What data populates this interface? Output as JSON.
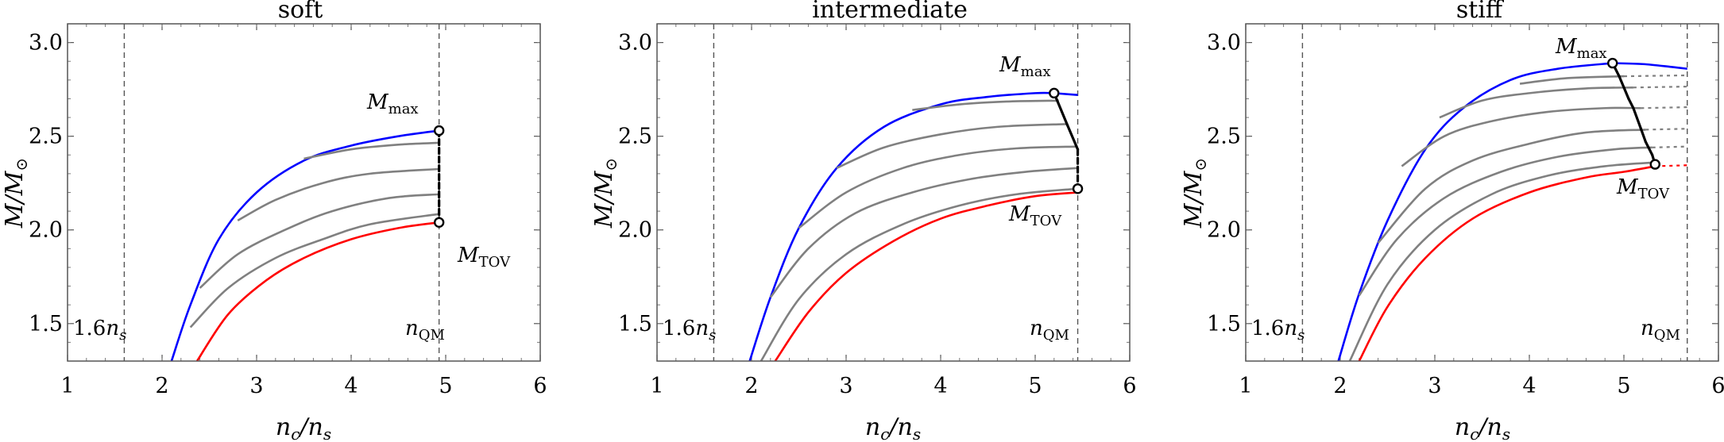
{
  "chart_data": [
    {
      "type": "line",
      "title": "soft",
      "xlabel": "n_c/n_s",
      "ylabel": "M/M_⊙",
      "xlim": [
        1,
        6
      ],
      "ylim": [
        1.3,
        3.1
      ],
      "xticks": [
        "1",
        "2",
        "3",
        "4",
        "5",
        "6"
      ],
      "yticks": [
        "1.5",
        "2.0",
        "2.5",
        "3.0"
      ],
      "vlines": [
        1.6,
        4.93
      ],
      "labels": {
        "lower": "1.6",
        "lower_sub": "s",
        "nqm": "n",
        "nqm_sub": "QM",
        "mmax": "M",
        "mmax_sub": "max",
        "mtov": "M",
        "mtov_sub": "TOV"
      },
      "series": [
        {
          "name": "upper bound",
          "color": "#0000ff",
          "x": [
            2.1,
            2.3,
            2.6,
            3.0,
            3.5,
            4.0,
            4.5,
            4.93
          ],
          "y": [
            1.3,
            1.6,
            1.95,
            2.2,
            2.37,
            2.45,
            2.5,
            2.53
          ]
        },
        {
          "name": "intermediate 1",
          "color": "#808080",
          "x": [
            3.5,
            4.0,
            4.5,
            4.93
          ],
          "y": [
            2.38,
            2.43,
            2.455,
            2.465
          ]
        },
        {
          "name": "intermediate 2",
          "color": "#808080",
          "x": [
            2.8,
            3.2,
            3.7,
            4.2,
            4.93
          ],
          "y": [
            2.05,
            2.16,
            2.25,
            2.3,
            2.325
          ]
        },
        {
          "name": "intermediate 3",
          "color": "#808080",
          "x": [
            2.4,
            2.8,
            3.3,
            3.8,
            4.4,
            4.93
          ],
          "y": [
            1.69,
            1.87,
            2.0,
            2.1,
            2.17,
            2.19
          ]
        },
        {
          "name": "intermediate 4",
          "color": "#808080",
          "x": [
            2.3,
            2.7,
            3.2,
            3.7,
            4.2,
            4.93
          ],
          "y": [
            1.48,
            1.69,
            1.85,
            1.95,
            2.03,
            2.085
          ]
        },
        {
          "name": "lower bound",
          "color": "#ff0000",
          "x": [
            2.37,
            2.7,
            3.1,
            3.5,
            4.0,
            4.5,
            4.93
          ],
          "y": [
            1.3,
            1.55,
            1.73,
            1.85,
            1.95,
            2.01,
            2.04
          ]
        }
      ],
      "markers": {
        "mmax": {
          "x": 4.93,
          "y": 2.53
        },
        "mtov": {
          "x": 4.93,
          "y": 2.04
        }
      },
      "black_curve": {
        "x": [
          4.93,
          4.93
        ],
        "y": [
          2.53,
          2.04
        ],
        "dashed": [
          true
        ]
      },
      "dotted_extensions": []
    },
    {
      "type": "line",
      "title": "intermediate",
      "xlabel": "n_c/n_s",
      "ylabel": "M/M_⊙",
      "xlim": [
        1,
        6
      ],
      "ylim": [
        1.3,
        3.1
      ],
      "xticks": [
        "1",
        "2",
        "3",
        "4",
        "5",
        "6"
      ],
      "yticks": [
        "1.5",
        "2.0",
        "2.5",
        "3.0"
      ],
      "vlines": [
        1.6,
        5.45
      ],
      "labels": {
        "lower": "1.6",
        "lower_sub": "s",
        "nqm": "n",
        "nqm_sub": "QM",
        "mmax": "M",
        "mmax_sub": "max",
        "mtov": "M",
        "mtov_sub": "TOV"
      },
      "series": [
        {
          "name": "upper bound",
          "color": "#0000ff",
          "x": [
            1.98,
            2.2,
            2.5,
            2.9,
            3.4,
            4.0,
            4.5,
            5.0,
            5.2
          ],
          "y": [
            1.3,
            1.64,
            2.01,
            2.33,
            2.55,
            2.67,
            2.71,
            2.73,
            2.73
          ]
        },
        {
          "name": "blue tail",
          "color": "#0000ff",
          "x": [
            5.2,
            5.45
          ],
          "y": [
            2.73,
            2.72
          ]
        },
        {
          "name": "intermediate 1",
          "color": "#808080",
          "x": [
            3.7,
            4.2,
            4.7,
            5.25
          ],
          "y": [
            2.64,
            2.67,
            2.685,
            2.69
          ]
        },
        {
          "name": "intermediate 2",
          "color": "#808080",
          "x": [
            2.9,
            3.4,
            4.0,
            4.6,
            5.34
          ],
          "y": [
            2.33,
            2.44,
            2.51,
            2.55,
            2.565
          ]
        },
        {
          "name": "intermediate 3",
          "color": "#808080",
          "x": [
            2.5,
            3.0,
            3.6,
            4.2,
            4.8,
            5.45
          ],
          "y": [
            2.01,
            2.2,
            2.33,
            2.4,
            2.435,
            2.445
          ]
        },
        {
          "name": "intermediate 4",
          "color": "#808080",
          "x": [
            2.2,
            2.6,
            3.1,
            3.7,
            4.3,
            4.9,
            5.45
          ],
          "y": [
            1.64,
            1.9,
            2.09,
            2.2,
            2.27,
            2.31,
            2.33
          ]
        },
        {
          "name": "intermediate 5",
          "color": "#808080",
          "x": [
            2.1,
            2.5,
            3.0,
            3.6,
            4.2,
            4.8,
            5.45
          ],
          "y": [
            1.3,
            1.63,
            1.87,
            2.03,
            2.13,
            2.19,
            2.22
          ]
        },
        {
          "name": "lower bound",
          "color": "#ff0000",
          "x": [
            2.25,
            2.6,
            3.0,
            3.5,
            4.0,
            4.5,
            5.0,
            5.45
          ],
          "y": [
            1.3,
            1.56,
            1.77,
            1.94,
            2.06,
            2.13,
            2.18,
            2.2
          ]
        }
      ],
      "markers": {
        "mmax": {
          "x": 5.2,
          "y": 2.73
        },
        "mtov": {
          "x": 5.45,
          "y": 2.22
        }
      },
      "black_curve": {
        "x": [
          5.2,
          5.34,
          5.45,
          5.45
        ],
        "y": [
          2.73,
          2.56,
          2.43,
          2.22
        ],
        "dashed": [
          false,
          false,
          true
        ]
      },
      "dotted_extensions": []
    },
    {
      "type": "line",
      "title": "stiff",
      "xlabel": "n_c/n_s",
      "ylabel": "M/M_⊙",
      "xlim": [
        1,
        6
      ],
      "ylim": [
        1.3,
        3.1
      ],
      "xticks": [
        "1",
        "2",
        "3",
        "4",
        "5",
        "6"
      ],
      "yticks": [
        "1.5",
        "2.0",
        "2.5",
        "3.0"
      ],
      "vlines": [
        1.6,
        5.67
      ],
      "labels": {
        "lower": "1.6",
        "lower_sub": "s",
        "nqm": "n",
        "nqm_sub": "QM",
        "mmax": "M",
        "mmax_sub": "max",
        "mtov": "M",
        "mtov_sub": "TOV"
      },
      "series": [
        {
          "name": "upper bound",
          "color": "#0000ff",
          "x": [
            1.98,
            2.2,
            2.5,
            2.9,
            3.3,
            3.8,
            4.3,
            4.88
          ],
          "y": [
            1.3,
            1.66,
            2.05,
            2.43,
            2.65,
            2.8,
            2.86,
            2.89
          ]
        },
        {
          "name": "blue tail",
          "color": "#0000ff",
          "x": [
            4.88,
            5.2,
            5.5,
            5.67
          ],
          "y": [
            2.89,
            2.885,
            2.87,
            2.86
          ]
        },
        {
          "name": "intermediate 1",
          "color": "#808080",
          "x": [
            3.9,
            4.4,
            5.0
          ],
          "y": [
            2.78,
            2.81,
            2.82
          ]
        },
        {
          "name": "intermediate 2",
          "color": "#808080",
          "x": [
            3.05,
            3.5,
            4.0,
            4.6,
            5.1
          ],
          "y": [
            2.6,
            2.69,
            2.73,
            2.755,
            2.76
          ]
        },
        {
          "name": "intermediate 3",
          "color": "#808080",
          "x": [
            2.65,
            3.1,
            3.6,
            4.2,
            4.8,
            5.18
          ],
          "y": [
            2.34,
            2.5,
            2.58,
            2.63,
            2.65,
            2.65
          ]
        },
        {
          "name": "intermediate 4",
          "color": "#808080",
          "x": [
            2.4,
            2.9,
            3.4,
            4.0,
            4.6,
            5.23
          ],
          "y": [
            1.93,
            2.22,
            2.37,
            2.46,
            2.52,
            2.535
          ]
        },
        {
          "name": "intermediate 5",
          "color": "#808080",
          "x": [
            2.2,
            2.6,
            3.1,
            3.7,
            4.3,
            4.9,
            5.3
          ],
          "y": [
            1.65,
            1.95,
            2.17,
            2.31,
            2.39,
            2.43,
            2.44
          ]
        },
        {
          "name": "intermediate 6",
          "color": "#808080",
          "x": [
            2.1,
            2.5,
            3.0,
            3.6,
            4.2,
            4.8,
            5.33
          ],
          "y": [
            1.3,
            1.71,
            2.0,
            2.19,
            2.29,
            2.34,
            2.36
          ]
        },
        {
          "name": "lower bound",
          "color": "#ff0000",
          "x": [
            2.2,
            2.5,
            2.9,
            3.4,
            4.0,
            4.6,
            5.0,
            5.33
          ],
          "y": [
            1.3,
            1.59,
            1.85,
            2.06,
            2.2,
            2.28,
            2.31,
            2.34
          ]
        }
      ],
      "markers": {
        "mmax": {
          "x": 4.88,
          "y": 2.89
        },
        "mtov": {
          "x": 5.33,
          "y": 2.35
        }
      },
      "black_curve": {
        "x": [
          4.88,
          4.95,
          5.0,
          5.05,
          5.1,
          5.18,
          5.23,
          5.3,
          5.33
        ],
        "y": [
          2.89,
          2.82,
          2.76,
          2.7,
          2.65,
          2.54,
          2.47,
          2.4,
          2.35
        ],
        "dashed": [
          false,
          false,
          false,
          false,
          false,
          false,
          false,
          false
        ]
      },
      "dotted_extensions": [
        {
          "color": "#808080",
          "x": [
            5.0,
            5.67
          ],
          "y": [
            2.82,
            2.825
          ]
        },
        {
          "color": "#808080",
          "x": [
            5.1,
            5.67
          ],
          "y": [
            2.76,
            2.765
          ]
        },
        {
          "color": "#808080",
          "x": [
            5.18,
            5.67
          ],
          "y": [
            2.65,
            2.655
          ]
        },
        {
          "color": "#808080",
          "x": [
            5.23,
            5.67
          ],
          "y": [
            2.535,
            2.54
          ]
        },
        {
          "color": "#808080",
          "x": [
            5.3,
            5.67
          ],
          "y": [
            2.44,
            2.445
          ]
        },
        {
          "color": "#ff0000",
          "x": [
            5.33,
            5.67
          ],
          "y": [
            2.34,
            2.345
          ]
        }
      ]
    }
  ]
}
